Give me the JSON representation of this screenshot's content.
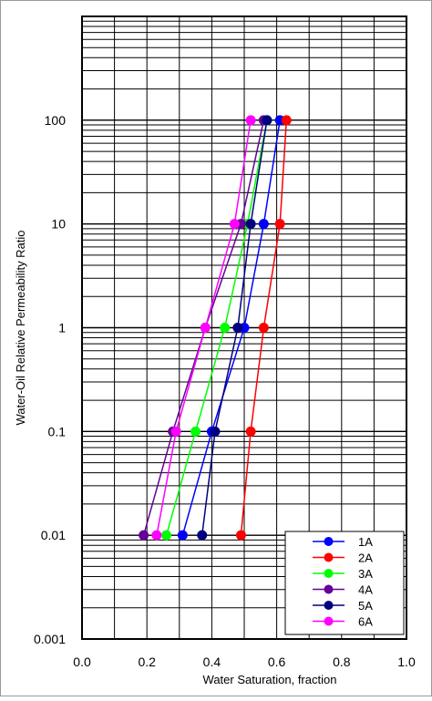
{
  "chart_data": {
    "type": "line",
    "xlabel": "Water Saturation, fraction",
    "ylabel": "Water-Oil Relative Permeability Ratio",
    "xlim": [
      0.0,
      1.0
    ],
    "ylim": [
      0.001,
      1000
    ],
    "y_scale": "log",
    "grid": true,
    "legend": "bottom-right",
    "x_ticks": [
      {
        "value": 0.0,
        "label": "0.0"
      },
      {
        "value": 0.2,
        "label": "0.2"
      },
      {
        "value": 0.4,
        "label": "0.4"
      },
      {
        "value": 0.6,
        "label": "0.6"
      },
      {
        "value": 0.8,
        "label": "0.8"
      },
      {
        "value": 1.0,
        "label": "1.0"
      }
    ],
    "y_ticks": [
      {
        "value": 0.001,
        "label": "0.001"
      },
      {
        "value": 0.01,
        "label": "0.01"
      },
      {
        "value": 0.1,
        "label": "0.1"
      },
      {
        "value": 1,
        "label": "1"
      },
      {
        "value": 10,
        "label": "10"
      },
      {
        "value": 100,
        "label": "100"
      }
    ],
    "series": [
      {
        "name": "1A",
        "color": "#0000ff",
        "points": [
          [
            0.31,
            0.01
          ],
          [
            0.4,
            0.1
          ],
          [
            0.5,
            1
          ],
          [
            0.56,
            10
          ],
          [
            0.61,
            100
          ]
        ]
      },
      {
        "name": "2A",
        "color": "#ff0000",
        "points": [
          [
            0.49,
            0.01
          ],
          [
            0.52,
            0.1
          ],
          [
            0.56,
            1
          ],
          [
            0.61,
            10
          ],
          [
            0.63,
            100
          ]
        ]
      },
      {
        "name": "3A",
        "color": "#00ff00",
        "points": [
          [
            0.26,
            0.01
          ],
          [
            0.35,
            0.1
          ],
          [
            0.44,
            1
          ],
          [
            0.51,
            10
          ],
          [
            0.57,
            100
          ]
        ]
      },
      {
        "name": "4A",
        "color": "#660099",
        "points": [
          [
            0.19,
            0.01
          ],
          [
            0.28,
            0.1
          ],
          [
            0.38,
            1
          ],
          [
            0.49,
            10
          ],
          [
            0.56,
            100
          ]
        ]
      },
      {
        "name": "5A",
        "color": "#000080",
        "points": [
          [
            0.37,
            0.01
          ],
          [
            0.41,
            0.1
          ],
          [
            0.48,
            1
          ],
          [
            0.52,
            10
          ],
          [
            0.57,
            100
          ]
        ]
      },
      {
        "name": "6A",
        "color": "#ff00ff",
        "points": [
          [
            0.23,
            0.01
          ],
          [
            0.29,
            0.1
          ],
          [
            0.38,
            1
          ],
          [
            0.47,
            10
          ],
          [
            0.52,
            100
          ]
        ]
      }
    ]
  }
}
